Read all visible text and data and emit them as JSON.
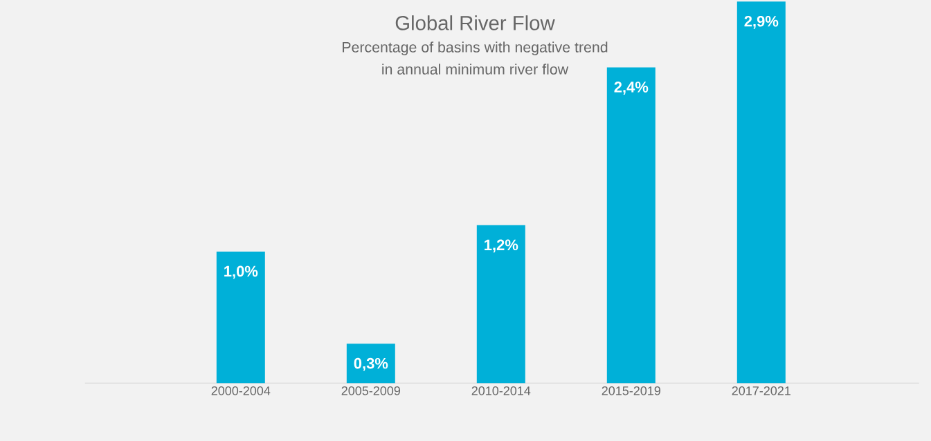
{
  "chart_data": {
    "type": "bar",
    "title": "Global River Flow",
    "subtitle": "Percentage of basins with negative trend\nin annual minimum river flow",
    "categories": [
      null,
      "2000-2004",
      "2005-2009",
      "2010-2014",
      "2015-2019",
      "2017-2021",
      null
    ],
    "values": [
      null,
      1.0,
      0.3,
      1.2,
      2.4,
      2.9,
      null
    ],
    "value_labels": [
      null,
      "1,0%",
      "0,3%",
      "1,2%",
      "2,4%",
      "2,9%",
      null
    ],
    "color": "#00b0d8"
  }
}
